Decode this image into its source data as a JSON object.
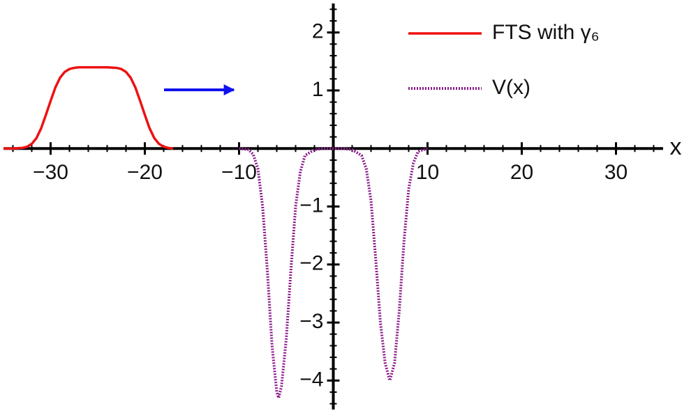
{
  "chart_data": {
    "type": "line",
    "xlabel": "x",
    "xlim": [
      -35,
      35
    ],
    "ylim": [
      -4.5,
      2.5
    ],
    "xticks": [
      {
        "value": -30,
        "label": "−30"
      },
      {
        "value": -20,
        "label": "−20"
      },
      {
        "value": -10,
        "label": "−10"
      },
      10,
      20,
      30
    ],
    "yticks": [
      {
        "value": -4,
        "label": "−4"
      },
      {
        "value": -3,
        "label": "−3"
      },
      {
        "value": -2,
        "label": "−2"
      },
      {
        "value": -1,
        "label": "−1"
      },
      1,
      2
    ],
    "legend": "top-right",
    "series": [
      {
        "name": "FTS with γ₆",
        "color": "#ee1111",
        "style": "solid",
        "x": [
          -35,
          -34,
          -33,
          -32.5,
          -32,
          -31.5,
          -31,
          -30.5,
          -30,
          -29.5,
          -29,
          -28.5,
          -28,
          -27.5,
          -27,
          -26,
          -25,
          -24,
          -23,
          -22.5,
          -22,
          -21.5,
          -21,
          -20.5,
          -20,
          -19.5,
          -19,
          -18.5,
          -18,
          -17.5,
          -17
        ],
        "values": [
          0,
          0,
          0.01,
          0.03,
          0.08,
          0.18,
          0.35,
          0.58,
          0.82,
          1.05,
          1.22,
          1.32,
          1.37,
          1.39,
          1.4,
          1.4,
          1.4,
          1.4,
          1.39,
          1.37,
          1.32,
          1.22,
          1.05,
          0.82,
          0.58,
          0.35,
          0.18,
          0.08,
          0.03,
          0.01,
          0
        ]
      },
      {
        "name": "V(x)",
        "color": "#8b1a8b",
        "style": "dotted",
        "x": [
          -10,
          -9,
          -8.5,
          -8,
          -7.5,
          -7,
          -6.5,
          -6,
          -5.8,
          -5.5,
          -5,
          -4.5,
          -4,
          -3.5,
          -3,
          -2,
          -1,
          0,
          1,
          2,
          3,
          3.5,
          4,
          4.5,
          5,
          5.5,
          6,
          6.5,
          7,
          7.5,
          8,
          8.5,
          9,
          10
        ],
        "values": [
          0,
          -0.02,
          -0.1,
          -0.35,
          -1.0,
          -2.1,
          -3.4,
          -4.2,
          -4.3,
          -4.1,
          -3.3,
          -2.1,
          -1.0,
          -0.4,
          -0.12,
          -0.02,
          0,
          0,
          0,
          -0.02,
          -0.12,
          -0.35,
          -0.9,
          -1.9,
          -3.0,
          -3.7,
          -4.0,
          -3.7,
          -2.8,
          -1.6,
          -0.7,
          -0.25,
          -0.05,
          0
        ]
      }
    ]
  }
}
